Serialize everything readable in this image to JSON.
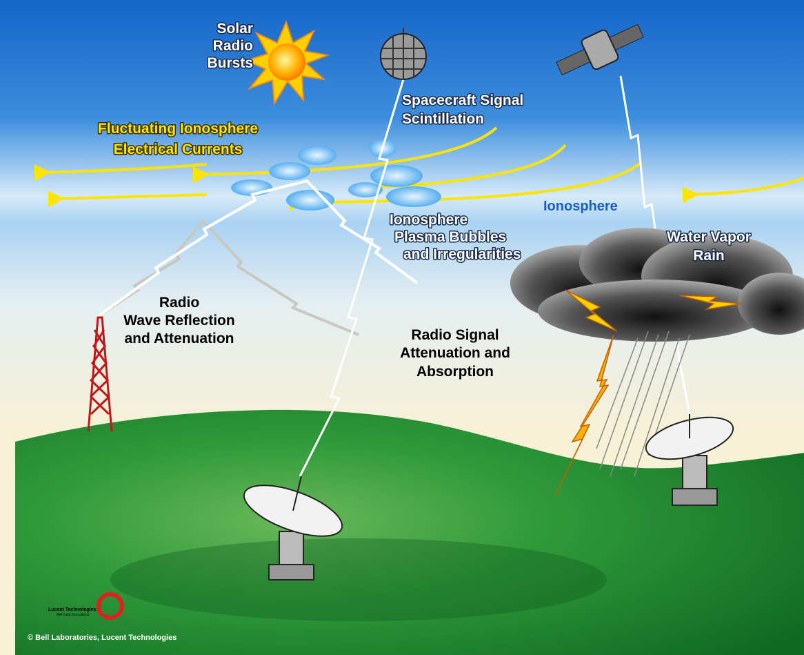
{
  "labels": {
    "solar_bursts": [
      "Solar",
      "Radio",
      "Bursts"
    ],
    "scintillation": [
      "Spacecraft Signal",
      "Scintillation"
    ],
    "currents": [
      "Fluctuating Ionosphere",
      "Electrical Currents"
    ],
    "ionosphere": "Ionosphere",
    "plasma": [
      "Ionosphere",
      "Plasma Bubbles",
      "and Irregularities"
    ],
    "water_vapor": [
      "Water Vapor",
      "Rain"
    ],
    "reflection": [
      "Radio",
      "Wave Reflection",
      "and Attenuation"
    ],
    "absorption": [
      "Radio Signal",
      "Attenuation and",
      "Absorption"
    ]
  },
  "logo": {
    "company": "Lucent Technologies",
    "tagline": "Bell Labs Innovations"
  },
  "copyright": "© Bell Laboratories, Lucent Technologies"
}
